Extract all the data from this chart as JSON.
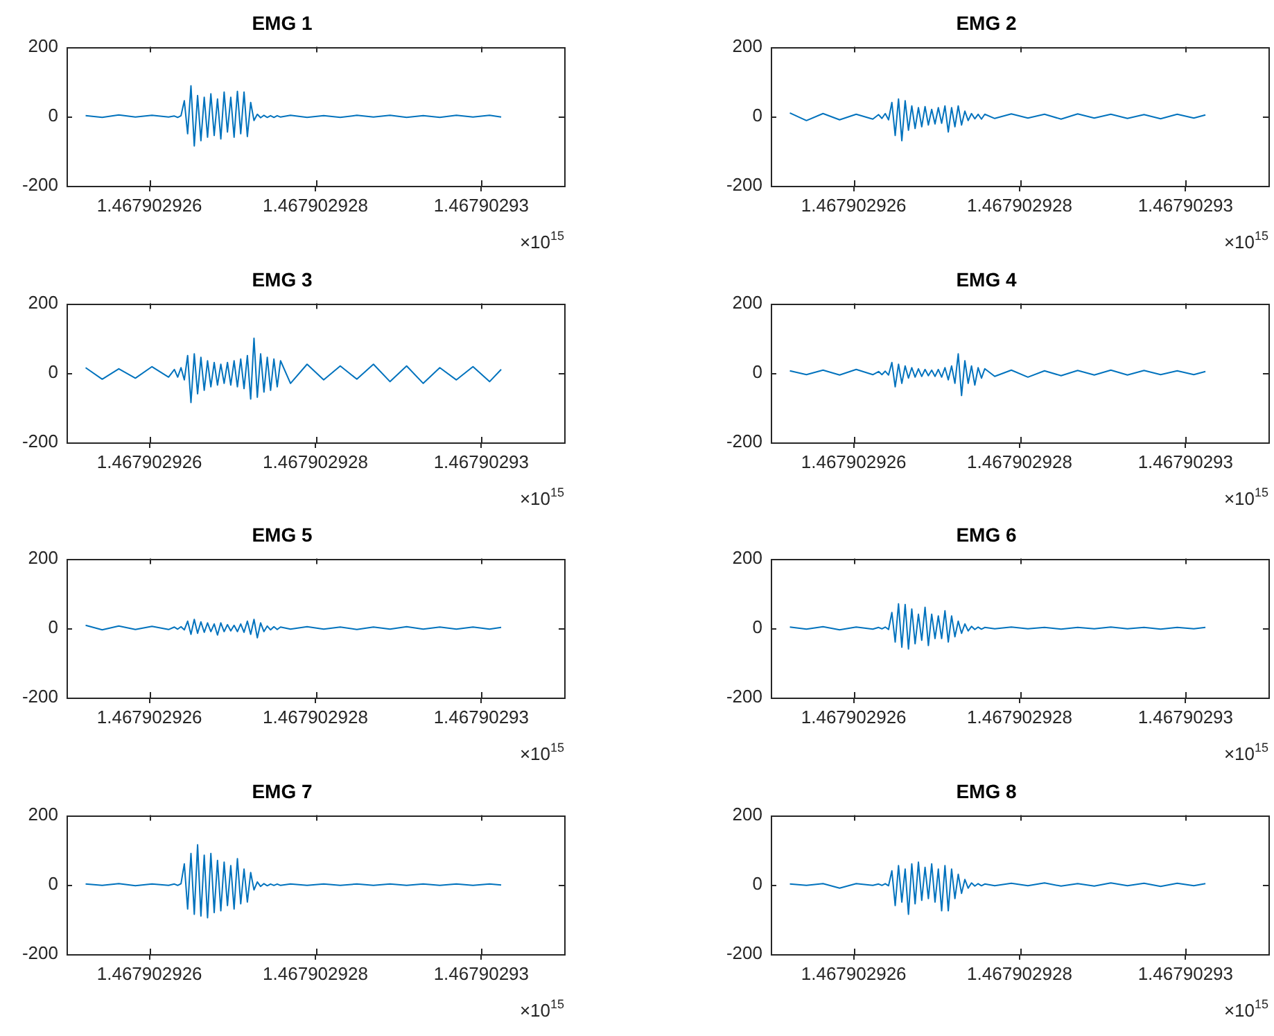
{
  "chart_data": [
    {
      "type": "line",
      "title": "EMG 1",
      "color": "#0072bd",
      "marker": "none",
      "xlim": [
        1.467902925,
        1.467902931
      ],
      "xticks": [
        1.467902926,
        1.467902928,
        1.46790293
      ],
      "ylim": [
        -200,
        200
      ],
      "yticks": [
        -200,
        0,
        200
      ],
      "annotations": [
        "×10$^{15}$"
      ],
      "x": [
        1.46790292523,
        1.46790292543,
        1.46790292563,
        1.46790292583,
        1.46790292603,
        1.46790292623,
        1.4679029263,
        1.46790292634,
        1.46790292638,
        1.46790292642,
        1.46790292646,
        1.4679029265,
        1.46790292654,
        1.46790292658,
        1.46790292662,
        1.46790292666,
        1.4679029267,
        1.46790292674,
        1.46790292678,
        1.46790292682,
        1.46790292686,
        1.4679029269,
        1.46790292694,
        1.46790292698,
        1.46790292702,
        1.46790292706,
        1.4679029271,
        1.46790292714,
        1.46790292718,
        1.46790292722,
        1.46790292726,
        1.4679029273,
        1.46790292734,
        1.46790292738,
        1.46790292742,
        1.46790292746,
        1.4679029275,
        1.46790292754,
        1.46790292758,
        1.4679029277,
        1.4679029279,
        1.4679029281,
        1.4679029283,
        1.4679029285,
        1.4679029287,
        1.4679029289,
        1.4679029291,
        1.4679029293,
        1.4679029295,
        1.4679029297,
        1.4679029299,
        1.4679029301,
        1.46790293024
      ],
      "values": [
        2,
        -3,
        4,
        -2,
        3,
        -2,
        1,
        -3,
        2,
        45,
        -50,
        88,
        -85,
        60,
        -70,
        55,
        -60,
        65,
        -55,
        50,
        -65,
        70,
        -45,
        55,
        -60,
        72,
        -50,
        70,
        -58,
        40,
        -12,
        6,
        -4,
        3,
        -3,
        2,
        -3,
        2,
        -2,
        3,
        -3,
        2,
        -3,
        3,
        -2,
        3,
        -3,
        2,
        -3,
        3,
        -2,
        3,
        -2
      ]
    },
    {
      "type": "line",
      "title": "EMG 2",
      "color": "#0072bd",
      "marker": "none",
      "xlim": [
        1.467902925,
        1.467902931
      ],
      "xticks": [
        1.467902926,
        1.467902928,
        1.46790293
      ],
      "ylim": [
        -200,
        200
      ],
      "yticks": [
        -200,
        0,
        200
      ],
      "annotations": [
        "×10$^{15}$"
      ],
      "x": [
        1.46790292523,
        1.46790292543,
        1.46790292563,
        1.46790292583,
        1.46790292603,
        1.46790292623,
        1.4679029263,
        1.46790292634,
        1.46790292638,
        1.46790292642,
        1.46790292646,
        1.4679029265,
        1.46790292654,
        1.46790292658,
        1.46790292662,
        1.46790292666,
        1.4679029267,
        1.46790292674,
        1.46790292678,
        1.46790292682,
        1.46790292686,
        1.4679029269,
        1.46790292694,
        1.46790292698,
        1.46790292702,
        1.46790292706,
        1.4679029271,
        1.46790292714,
        1.46790292718,
        1.46790292722,
        1.46790292726,
        1.4679029273,
        1.46790292734,
        1.46790292738,
        1.46790292742,
        1.46790292746,
        1.4679029275,
        1.46790292754,
        1.46790292758,
        1.4679029277,
        1.4679029279,
        1.4679029281,
        1.4679029283,
        1.4679029285,
        1.4679029287,
        1.4679029289,
        1.4679029291,
        1.4679029293,
        1.4679029295,
        1.4679029297,
        1.4679029299,
        1.4679029301,
        1.46790293024
      ],
      "values": [
        10,
        -12,
        8,
        -10,
        6,
        -8,
        5,
        -6,
        8,
        -10,
        40,
        -55,
        50,
        -70,
        45,
        -40,
        30,
        -35,
        25,
        -30,
        28,
        -25,
        20,
        -22,
        25,
        -20,
        30,
        -45,
        25,
        -30,
        30,
        -25,
        15,
        -12,
        8,
        -7,
        6,
        -8,
        6,
        -6,
        7,
        -5,
        6,
        -8,
        7,
        -5,
        6,
        -6,
        5,
        -7,
        6,
        -5,
        4
      ]
    },
    {
      "type": "line",
      "title": "EMG 3",
      "color": "#0072bd",
      "marker": "none",
      "xlim": [
        1.467902925,
        1.467902931
      ],
      "xticks": [
        1.467902926,
        1.467902928,
        1.46790293
      ],
      "ylim": [
        -200,
        200
      ],
      "yticks": [
        -200,
        0,
        200
      ],
      "annotations": [
        "×10$^{15}$"
      ],
      "x": [
        1.46790292523,
        1.46790292543,
        1.46790292563,
        1.46790292583,
        1.46790292603,
        1.46790292623,
        1.4679029263,
        1.46790292634,
        1.46790292638,
        1.46790292642,
        1.46790292646,
        1.4679029265,
        1.46790292654,
        1.46790292658,
        1.46790292662,
        1.46790292666,
        1.4679029267,
        1.46790292674,
        1.46790292678,
        1.46790292682,
        1.46790292686,
        1.4679029269,
        1.46790292694,
        1.46790292698,
        1.46790292702,
        1.46790292706,
        1.4679029271,
        1.46790292714,
        1.46790292718,
        1.46790292722,
        1.46790292726,
        1.4679029273,
        1.46790292734,
        1.46790292738,
        1.46790292742,
        1.46790292746,
        1.4679029275,
        1.46790292754,
        1.46790292758,
        1.4679029277,
        1.4679029279,
        1.4679029281,
        1.4679029283,
        1.4679029285,
        1.4679029287,
        1.4679029289,
        1.4679029291,
        1.4679029293,
        1.4679029295,
        1.4679029297,
        1.4679029299,
        1.4679029301,
        1.46790293024
      ],
      "values": [
        15,
        -18,
        12,
        -15,
        18,
        -12,
        10,
        -12,
        15,
        -20,
        50,
        -85,
        55,
        -60,
        45,
        -50,
        35,
        -40,
        30,
        -35,
        25,
        -30,
        30,
        -35,
        35,
        -40,
        40,
        -45,
        50,
        -75,
        100,
        -70,
        55,
        -55,
        45,
        -50,
        40,
        -40,
        35,
        -30,
        25,
        -20,
        20,
        -18,
        25,
        -25,
        20,
        -30,
        15,
        -20,
        18,
        -25,
        10
      ]
    },
    {
      "type": "line",
      "title": "EMG 4",
      "color": "#0072bd",
      "marker": "none",
      "xlim": [
        1.467902925,
        1.467902931
      ],
      "xticks": [
        1.467902926,
        1.467902928,
        1.46790293
      ],
      "ylim": [
        -200,
        200
      ],
      "yticks": [
        -200,
        0,
        200
      ],
      "annotations": [
        "×10$^{15}$"
      ],
      "x": [
        1.46790292523,
        1.46790292543,
        1.46790292563,
        1.46790292583,
        1.46790292603,
        1.46790292623,
        1.4679029263,
        1.46790292634,
        1.46790292638,
        1.46790292642,
        1.46790292646,
        1.4679029265,
        1.46790292654,
        1.46790292658,
        1.46790292662,
        1.46790292666,
        1.4679029267,
        1.46790292674,
        1.46790292678,
        1.46790292682,
        1.46790292686,
        1.4679029269,
        1.46790292694,
        1.46790292698,
        1.46790292702,
        1.46790292706,
        1.4679029271,
        1.46790292714,
        1.46790292718,
        1.46790292722,
        1.46790292726,
        1.4679029273,
        1.46790292734,
        1.46790292738,
        1.46790292742,
        1.46790292746,
        1.4679029275,
        1.46790292754,
        1.46790292758,
        1.4679029277,
        1.4679029279,
        1.4679029281,
        1.4679029283,
        1.4679029285,
        1.4679029287,
        1.4679029289,
        1.4679029291,
        1.4679029293,
        1.4679029295,
        1.4679029297,
        1.4679029299,
        1.4679029301,
        1.46790293024
      ],
      "values": [
        6,
        -5,
        8,
        -6,
        10,
        -5,
        4,
        -5,
        5,
        -6,
        30,
        -40,
        25,
        -30,
        20,
        -15,
        15,
        -12,
        12,
        -10,
        10,
        -8,
        8,
        -10,
        10,
        -12,
        15,
        -20,
        20,
        -30,
        55,
        -65,
        35,
        -30,
        20,
        -35,
        15,
        -15,
        12,
        -10,
        8,
        -12,
        6,
        -8,
        7,
        -6,
        8,
        -6,
        7,
        -5,
        6,
        -5,
        4
      ]
    },
    {
      "type": "line",
      "title": "EMG 5",
      "color": "#0072bd",
      "marker": "none",
      "xlim": [
        1.467902925,
        1.467902931
      ],
      "xticks": [
        1.467902926,
        1.467902928,
        1.46790293
      ],
      "ylim": [
        -200,
        200
      ],
      "yticks": [
        -200,
        0,
        200
      ],
      "annotations": [
        "×10$^{15}$"
      ],
      "x": [
        1.46790292523,
        1.46790292543,
        1.46790292563,
        1.46790292583,
        1.46790292603,
        1.46790292623,
        1.4679029263,
        1.46790292634,
        1.46790292638,
        1.46790292642,
        1.46790292646,
        1.4679029265,
        1.46790292654,
        1.46790292658,
        1.46790292662,
        1.46790292666,
        1.4679029267,
        1.46790292674,
        1.46790292678,
        1.46790292682,
        1.46790292686,
        1.4679029269,
        1.46790292694,
        1.46790292698,
        1.46790292702,
        1.46790292706,
        1.4679029271,
        1.46790292714,
        1.46790292718,
        1.46790292722,
        1.46790292726,
        1.4679029273,
        1.46790292734,
        1.46790292738,
        1.46790292742,
        1.46790292746,
        1.4679029275,
        1.46790292754,
        1.46790292758,
        1.4679029277,
        1.4679029279,
        1.4679029281,
        1.4679029283,
        1.4679029285,
        1.4679029287,
        1.4679029289,
        1.4679029291,
        1.4679029293,
        1.4679029295,
        1.4679029297,
        1.4679029299,
        1.4679029301,
        1.46790293024
      ],
      "values": [
        8,
        -5,
        6,
        -4,
        5,
        -4,
        3,
        -3,
        4,
        -5,
        20,
        -18,
        25,
        -15,
        18,
        -12,
        15,
        -10,
        12,
        -20,
        15,
        -10,
        10,
        -8,
        8,
        -10,
        12,
        -12,
        20,
        -18,
        25,
        -28,
        15,
        -10,
        6,
        -5,
        4,
        -4,
        3,
        -3,
        4,
        -3,
        3,
        -4,
        3,
        -3,
        4,
        -3,
        3,
        -3,
        3,
        -3,
        2
      ]
    },
    {
      "type": "line",
      "title": "EMG 6",
      "color": "#0072bd",
      "marker": "none",
      "xlim": [
        1.467902925,
        1.467902931
      ],
      "xticks": [
        1.467902926,
        1.467902928,
        1.46790293
      ],
      "ylim": [
        -200,
        200
      ],
      "yticks": [
        -200,
        0,
        200
      ],
      "annotations": [
        "×10$^{15}$"
      ],
      "x": [
        1.46790292523,
        1.46790292543,
        1.46790292563,
        1.46790292583,
        1.46790292603,
        1.46790292623,
        1.4679029263,
        1.46790292634,
        1.46790292638,
        1.46790292642,
        1.46790292646,
        1.4679029265,
        1.46790292654,
        1.46790292658,
        1.46790292662,
        1.46790292666,
        1.4679029267,
        1.46790292674,
        1.46790292678,
        1.46790292682,
        1.46790292686,
        1.4679029269,
        1.46790292694,
        1.46790292698,
        1.46790292702,
        1.46790292706,
        1.4679029271,
        1.46790292714,
        1.46790292718,
        1.46790292722,
        1.46790292726,
        1.4679029273,
        1.46790292734,
        1.46790292738,
        1.46790292742,
        1.46790292746,
        1.4679029275,
        1.46790292754,
        1.46790292758,
        1.4679029277,
        1.4679029279,
        1.4679029281,
        1.4679029283,
        1.4679029285,
        1.4679029287,
        1.4679029289,
        1.4679029291,
        1.4679029293,
        1.4679029295,
        1.4679029297,
        1.4679029299,
        1.4679029301,
        1.46790293024
      ],
      "values": [
        3,
        -3,
        4,
        -5,
        3,
        -3,
        2,
        -2,
        3,
        -4,
        45,
        -40,
        70,
        -55,
        68,
        -60,
        55,
        -45,
        40,
        -35,
        60,
        -50,
        40,
        -30,
        35,
        -30,
        50,
        -40,
        35,
        -25,
        20,
        -15,
        12,
        -8,
        5,
        -4,
        3,
        -3,
        2,
        -2,
        3,
        -2,
        2,
        -3,
        2,
        -2,
        3,
        -2,
        2,
        -3,
        2,
        -2,
        2
      ]
    },
    {
      "type": "line",
      "title": "EMG 7",
      "color": "#0072bd",
      "marker": "none",
      "xlim": [
        1.467902925,
        1.467902931
      ],
      "xticks": [
        1.467902926,
        1.467902928,
        1.46790293
      ],
      "ylim": [
        -200,
        200
      ],
      "yticks": [
        -200,
        0,
        200
      ],
      "annotations": [
        "×10$^{15}$"
      ],
      "x": [
        1.46790292523,
        1.46790292543,
        1.46790292563,
        1.46790292583,
        1.46790292603,
        1.46790292623,
        1.4679029263,
        1.46790292634,
        1.46790292638,
        1.46790292642,
        1.46790292646,
        1.4679029265,
        1.46790292654,
        1.46790292658,
        1.46790292662,
        1.46790292666,
        1.4679029267,
        1.46790292674,
        1.46790292678,
        1.46790292682,
        1.46790292686,
        1.4679029269,
        1.46790292694,
        1.46790292698,
        1.46790292702,
        1.46790292706,
        1.4679029271,
        1.46790292714,
        1.46790292718,
        1.46790292722,
        1.46790292726,
        1.4679029273,
        1.46790292734,
        1.46790292738,
        1.46790292742,
        1.46790292746,
        1.4679029275,
        1.46790292754,
        1.46790292758,
        1.4679029277,
        1.4679029279,
        1.4679029281,
        1.4679029283,
        1.4679029285,
        1.4679029287,
        1.4679029289,
        1.4679029291,
        1.4679029293,
        1.4679029295,
        1.4679029297,
        1.4679029299,
        1.4679029301,
        1.46790293024
      ],
      "values": [
        2,
        -2,
        3,
        -3,
        2,
        -2,
        2,
        -2,
        3,
        60,
        -70,
        90,
        -85,
        115,
        -90,
        85,
        -95,
        90,
        -80,
        70,
        -75,
        65,
        -60,
        55,
        -70,
        75,
        -55,
        45,
        -50,
        35,
        -15,
        8,
        -5,
        3,
        -3,
        2,
        -2,
        2,
        -2,
        2,
        -2,
        2,
        -2,
        2,
        -2,
        2,
        -2,
        2,
        -2,
        2,
        -2,
        2,
        -1
      ]
    },
    {
      "type": "line",
      "title": "EMG 8",
      "color": "#0072bd",
      "marker": "none",
      "xlim": [
        1.467902925,
        1.467902931
      ],
      "xticks": [
        1.467902926,
        1.467902928,
        1.46790293
      ],
      "ylim": [
        -200,
        200
      ],
      "yticks": [
        -200,
        0,
        200
      ],
      "annotations": [
        "×10$^{15}$"
      ],
      "x": [
        1.46790292523,
        1.46790292543,
        1.46790292563,
        1.46790292583,
        1.46790292603,
        1.46790292623,
        1.4679029263,
        1.46790292634,
        1.46790292638,
        1.46790292642,
        1.46790292646,
        1.4679029265,
        1.46790292654,
        1.46790292658,
        1.46790292662,
        1.46790292666,
        1.4679029267,
        1.46790292674,
        1.46790292678,
        1.46790292682,
        1.46790292686,
        1.4679029269,
        1.46790292694,
        1.46790292698,
        1.46790292702,
        1.46790292706,
        1.4679029271,
        1.46790292714,
        1.46790292718,
        1.46790292722,
        1.46790292726,
        1.4679029273,
        1.46790292734,
        1.46790292738,
        1.46790292742,
        1.46790292746,
        1.4679029275,
        1.46790292754,
        1.46790292758,
        1.4679029277,
        1.4679029279,
        1.4679029281,
        1.4679029283,
        1.4679029285,
        1.4679029287,
        1.4679029289,
        1.4679029291,
        1.4679029293,
        1.4679029295,
        1.4679029297,
        1.4679029299,
        1.4679029301,
        1.46790293024
      ],
      "values": [
        2,
        -2,
        3,
        -10,
        3,
        -2,
        2,
        -2,
        3,
        -3,
        40,
        -60,
        55,
        -50,
        45,
        -85,
        60,
        -55,
        65,
        -45,
        50,
        -40,
        60,
        -50,
        45,
        -75,
        55,
        -75,
        45,
        -40,
        30,
        -25,
        15,
        -10,
        5,
        -4,
        3,
        -3,
        2,
        -3,
        4,
        -3,
        5,
        -4,
        3,
        -4,
        5,
        -3,
        4,
        -5,
        4,
        -3,
        3
      ]
    }
  ]
}
